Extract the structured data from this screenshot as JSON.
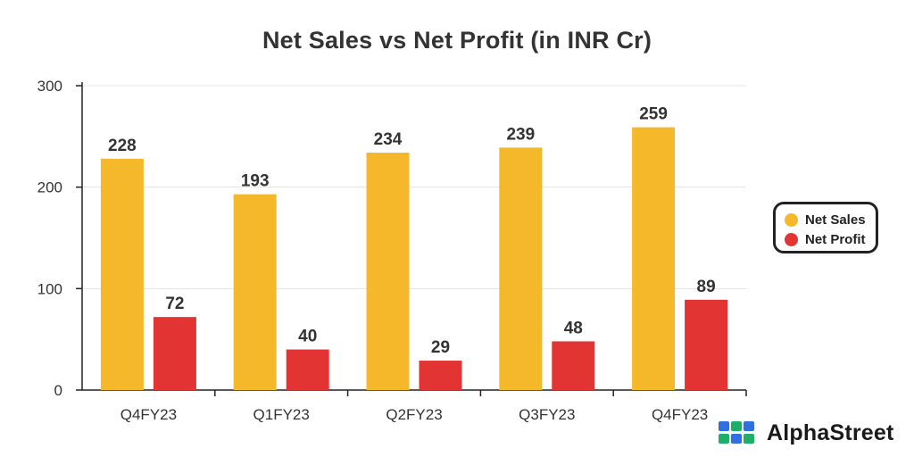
{
  "chart_data": {
    "type": "bar",
    "title": "Net Sales vs Net Profit (in INR Cr)",
    "categories": [
      "Q4FY23",
      "Q1FY23",
      "Q2FY23",
      "Q3FY23",
      "Q4FY23"
    ],
    "series": [
      {
        "name": "Net Sales",
        "color": "#F5B82A",
        "values": [
          228,
          193,
          234,
          239,
          259
        ]
      },
      {
        "name": "Net Profit",
        "color": "#E33434",
        "values": [
          72,
          40,
          29,
          48,
          89
        ]
      }
    ],
    "ylim": [
      0,
      300
    ],
    "yticks": [
      0,
      100,
      200,
      300
    ],
    "grid": true,
    "legend_position": "right"
  },
  "brand": {
    "name": "AlphaStreet",
    "colors": [
      "#2F6FE0",
      "#1FAE6A"
    ]
  }
}
